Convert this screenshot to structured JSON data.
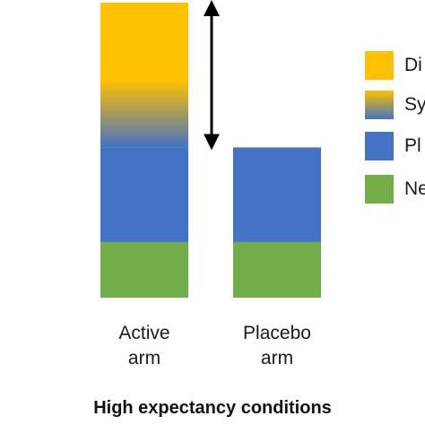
{
  "chart_data": {
    "type": "bar",
    "stacked": true,
    "title": "High expectancy conditions",
    "categories": [
      "Active\narm",
      "Placebo\narm"
    ],
    "series": [
      {
        "name": "Ne",
        "color": "#70ad47",
        "values": [
          1,
          1
        ]
      },
      {
        "name": "Pl",
        "color": "#4472c4",
        "values": [
          1.7,
          1.7
        ]
      },
      {
        "name": "Sy",
        "color": "#4472c4",
        "color_to": "#ffc000",
        "values": [
          1.2,
          0
        ]
      },
      {
        "name": "Di",
        "color": "#ffc000",
        "values": [
          1.4,
          0
        ]
      }
    ],
    "ylim": [
      0,
      5.3
    ],
    "legend_position": "right",
    "annotation": "double-headed arrow spanning the gap between the active arm total and the placebo arm total"
  }
}
